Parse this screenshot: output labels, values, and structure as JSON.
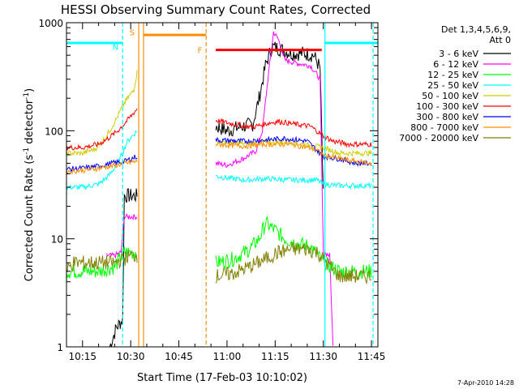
{
  "chart_data": {
    "type": "line",
    "title": "HESSI Observing Summary Count Rates, Corrected",
    "xlabel": "Start Time (17-Feb-03 10:10:02)",
    "ylabel": "Corrected Count Rate (s",
    "ylabel_sup1": "-1",
    "ylabel_mid": " detector",
    "ylabel_sup2": "-1",
    "ylabel_end": ")",
    "x_unit": "minutes since 10:10:02 UT",
    "xlim": [
      0,
      97
    ],
    "ylim": [
      1,
      1000
    ],
    "y_scale": "log",
    "x_ticks": [
      {
        "x": 5,
        "label": "10:15"
      },
      {
        "x": 20,
        "label": "10:30"
      },
      {
        "x": 35,
        "label": "10:45"
      },
      {
        "x": 50,
        "label": "11:00"
      },
      {
        "x": 65,
        "label": "11:15"
      },
      {
        "x": 80,
        "label": "11:30"
      },
      {
        "x": 95,
        "label": "11:45"
      }
    ],
    "y_ticks": [
      {
        "y": 1,
        "label": "1"
      },
      {
        "y": 10,
        "label": "10"
      },
      {
        "y": 100,
        "label": "100"
      },
      {
        "y": 1000,
        "label": "1000"
      }
    ],
    "legend": {
      "position": "right",
      "header": [
        "Det 1,3,4,5,6,9,",
        "Att 0"
      ],
      "entries": [
        {
          "label": "3 - 6 keV",
          "color": "#000000"
        },
        {
          "label": "6 - 12 keV",
          "color": "#ff00ff"
        },
        {
          "label": "12 - 25 keV",
          "color": "#00ff00"
        },
        {
          "label": "25 - 50 keV",
          "color": "#00ffff"
        },
        {
          "label": "50 - 100 keV",
          "color": "#cccc00"
        },
        {
          "label": "100 - 300 keV",
          "color": "#ff0000"
        },
        {
          "label": "300 - 800 keV",
          "color": "#0000ff"
        },
        {
          "label": "800 - 7000 keV",
          "color": "#ff8c00"
        },
        {
          "label": "7000 - 20000 keV",
          "color": "#808000"
        }
      ]
    },
    "series": [
      {
        "name": "3 - 6 keV",
        "color": "#000000",
        "segments": [
          [
            [
              13.5,
              1
            ],
            [
              15.5,
              1.5
            ],
            [
              17.5,
              1.8
            ],
            [
              18,
              25
            ],
            [
              22,
              25
            ]
          ],
          [
            [
              46.5,
              110
            ],
            [
              50,
              100
            ],
            [
              55,
              110
            ],
            [
              58,
              115
            ],
            [
              60,
              200
            ],
            [
              62,
              400
            ],
            [
              64,
              600
            ],
            [
              66,
              580
            ],
            [
              70,
              520
            ],
            [
              74,
              520
            ],
            [
              77,
              500
            ],
            [
              79,
              380
            ],
            [
              80,
              25
            ]
          ]
        ]
      },
      {
        "name": "6 - 12 keV",
        "color": "#ff00ff",
        "segments": [
          [
            [
              12.5,
              7
            ],
            [
              15,
              7
            ],
            [
              17,
              7.5
            ],
            [
              18,
              16
            ],
            [
              22,
              16
            ]
          ],
          [
            [
              46.5,
              50
            ],
            [
              50,
              48
            ],
            [
              55,
              55
            ],
            [
              59,
              65
            ],
            [
              61,
              100
            ],
            [
              63,
              350
            ],
            [
              64.5,
              820
            ],
            [
              66,
              700
            ],
            [
              68,
              450
            ],
            [
              72,
              420
            ],
            [
              76,
              400
            ],
            [
              79,
              300
            ],
            [
              80,
              7.5
            ],
            [
              82,
              7
            ],
            [
              83,
              1
            ]
          ]
        ]
      },
      {
        "name": "12 - 25 keV",
        "color": "#00ff00",
        "segments": [
          [
            [
              0,
              5
            ],
            [
              5,
              5
            ],
            [
              10,
              5
            ],
            [
              15,
              5.5
            ],
            [
              18,
              7.5
            ],
            [
              22,
              7.5
            ]
          ],
          [
            [
              46.5,
              6
            ],
            [
              52,
              6.5
            ],
            [
              57,
              8
            ],
            [
              60,
              10
            ],
            [
              62,
              14
            ],
            [
              65,
              12
            ],
            [
              68,
              10
            ],
            [
              72,
              9
            ],
            [
              76,
              8.5
            ],
            [
              80,
              6
            ],
            [
              85,
              5
            ],
            [
              90,
              5
            ],
            [
              95,
              5
            ]
          ]
        ]
      },
      {
        "name": "25 - 50 keV",
        "color": "#00ffff",
        "segments": [
          [
            [
              0,
              30
            ],
            [
              5,
              30
            ],
            [
              10,
              32
            ],
            [
              13,
              38
            ],
            [
              16,
              50
            ],
            [
              19,
              80
            ],
            [
              22,
              100
            ]
          ],
          [
            [
              46.5,
              38
            ],
            [
              55,
              35
            ],
            [
              62,
              36
            ],
            [
              70,
              35
            ],
            [
              78,
              35
            ],
            [
              80,
              32
            ],
            [
              85,
              31
            ],
            [
              90,
              31
            ],
            [
              95,
              31
            ]
          ]
        ]
      },
      {
        "name": "50 - 100 keV",
        "color": "#cccc00",
        "segments": [
          [
            [
              0,
              62
            ],
            [
              5,
              62
            ],
            [
              9,
              68
            ],
            [
              12,
              85
            ],
            [
              15,
              120
            ],
            [
              18,
              180
            ],
            [
              21,
              240
            ],
            [
              22,
              350
            ]
          ],
          [
            [
              46.5,
              78
            ],
            [
              55,
              76
            ],
            [
              62,
              78
            ],
            [
              70,
              78
            ],
            [
              77,
              72
            ],
            [
              80,
              70
            ],
            [
              85,
              62
            ],
            [
              90,
              62
            ],
            [
              95,
              62
            ]
          ]
        ]
      },
      {
        "name": "100 - 300 keV",
        "color": "#ff0000",
        "segments": [
          [
            [
              0,
              70
            ],
            [
              5,
              70
            ],
            [
              10,
              75
            ],
            [
              13,
              85
            ],
            [
              16,
              100
            ],
            [
              19,
              125
            ],
            [
              22,
              160
            ]
          ],
          [
            [
              46.5,
              125
            ],
            [
              52,
              115
            ],
            [
              58,
              108
            ],
            [
              63,
              118
            ],
            [
              66,
              122
            ],
            [
              71,
              115
            ],
            [
              76,
              110
            ],
            [
              80,
              90
            ],
            [
              83,
              80
            ],
            [
              88,
              75
            ],
            [
              95,
              75
            ]
          ]
        ]
      },
      {
        "name": "300 - 800 keV",
        "color": "#0000ff",
        "segments": [
          [
            [
              0,
              44
            ],
            [
              5,
              45
            ],
            [
              10,
              47
            ],
            [
              14,
              50
            ],
            [
              18,
              52
            ],
            [
              22,
              58
            ]
          ],
          [
            [
              46.5,
              82
            ],
            [
              55,
              80
            ],
            [
              62,
              82
            ],
            [
              68,
              85
            ],
            [
              75,
              80
            ],
            [
              80,
              58
            ],
            [
              85,
              55
            ],
            [
              90,
              50
            ],
            [
              95,
              50
            ]
          ]
        ]
      },
      {
        "name": "800 - 7000 keV",
        "color": "#ff8c00",
        "segments": [
          [
            [
              0,
              42
            ],
            [
              5,
              43
            ],
            [
              10,
              45
            ],
            [
              14,
              47
            ],
            [
              18,
              50
            ],
            [
              22,
              52
            ]
          ],
          [
            [
              46.5,
              75
            ],
            [
              55,
              72
            ],
            [
              62,
              75
            ],
            [
              70,
              75
            ],
            [
              77,
              68
            ],
            [
              80,
              60
            ],
            [
              85,
              55
            ],
            [
              90,
              52
            ],
            [
              95,
              50
            ]
          ]
        ]
      },
      {
        "name": "7000 - 20000 keV",
        "color": "#808000",
        "segments": [
          [
            [
              0,
              5
            ],
            [
              2,
              6
            ],
            [
              5,
              6
            ],
            [
              10,
              6
            ],
            [
              15,
              6
            ],
            [
              20,
              7
            ],
            [
              22,
              7
            ]
          ],
          [
            [
              46.5,
              4.5
            ],
            [
              52,
              4.8
            ],
            [
              57,
              5.5
            ],
            [
              62,
              6.5
            ],
            [
              66,
              7.5
            ],
            [
              70,
              8
            ],
            [
              75,
              8
            ],
            [
              78,
              7.5
            ],
            [
              80,
              6.5
            ],
            [
              85,
              4.5
            ],
            [
              90,
              4.5
            ],
            [
              95,
              4.5
            ]
          ]
        ]
      }
    ],
    "annotations": [
      {
        "type": "bar",
        "color": "#00ffff",
        "x": [
          0,
          17.5
        ],
        "y": 650
      },
      {
        "type": "bar",
        "color": "#00ffff",
        "x": [
          80.5,
          97
        ],
        "y": 650
      },
      {
        "type": "bar",
        "color": "#ff8c00",
        "x": [
          24,
          43.5
        ],
        "y": 770
      },
      {
        "type": "bar",
        "color": "#ff0000",
        "x": [
          46.5,
          79.5
        ],
        "y": 560
      },
      {
        "type": "vline",
        "color": "#00ffff",
        "style": "dashed",
        "x": 17.5,
        "label": "N"
      },
      {
        "type": "vline",
        "color": "#ff8c00",
        "style": "solid",
        "x": 22.5,
        "label": "S"
      },
      {
        "type": "vline",
        "color": "#ff8c00",
        "style": "solid",
        "x": 24
      },
      {
        "type": "vline",
        "color": "#ff8c00",
        "style": "dashed",
        "x": 43.5,
        "label": "F"
      },
      {
        "type": "vline",
        "color": "#00ffff",
        "style": "solid",
        "x": 80.5
      },
      {
        "type": "vline",
        "color": "#00ffff",
        "style": "dashed",
        "x": 95.5
      }
    ]
  },
  "footer": {
    "timestamp": "7-Apr-2010 14:28"
  }
}
